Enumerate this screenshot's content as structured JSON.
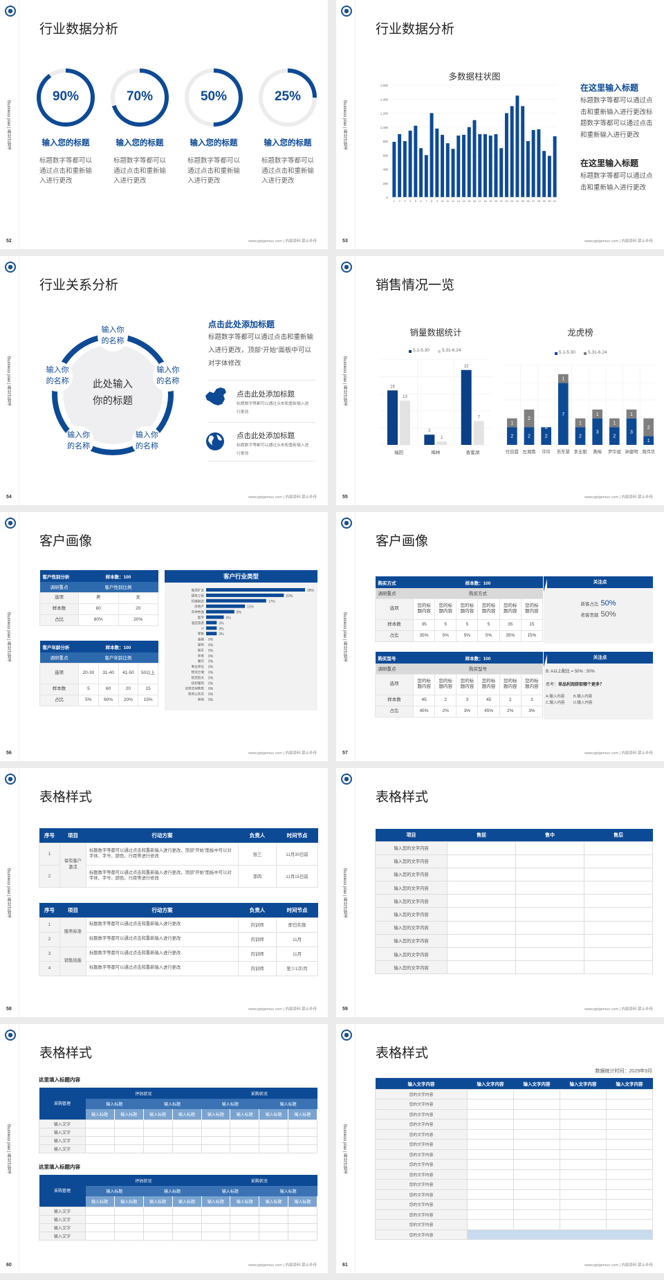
{
  "common": {
    "sidebar_text": "Business plan | 商业计划书",
    "footer": "www.pptgenius.com | 内部资料 禁止外传",
    "accent": "#0d4a96",
    "logo_icon": "school-crest-icon"
  },
  "s52": {
    "page": "52",
    "title": "行业数据分析",
    "items": [
      {
        "percent": 90,
        "label": "90%",
        "heading": "输入您的标题",
        "text": "标题数字等都可以通过点击和重新输入进行更改"
      },
      {
        "percent": 70,
        "label": "70%",
        "heading": "输入您的标题",
        "text": "标题数字等都可以通过点击和重新输入进行更改"
      },
      {
        "percent": 50,
        "label": "50%",
        "heading": "输入您的标题",
        "text": "标题数字等都可以通过点击和重新输入进行更改"
      },
      {
        "percent": 25,
        "label": "25%",
        "heading": "输入您的标题",
        "text": "标题数字等都可以通过点击和重新输入进行更改"
      }
    ]
  },
  "s53": {
    "page": "53",
    "title": "行业数据分析",
    "heading1": "在这里输入标题",
    "text1": "标题数字等都可以通过点击和重新输入进行更改标题数字等都可以通过点击和重新输入进行更改",
    "heading2": "在这里输入标题",
    "text2": "标题数字等都可以通过点击和重新输入进行更改"
  },
  "s54": {
    "page": "54",
    "title": "行业关系分析",
    "center": "此处输入你的标题",
    "nodes": [
      "输入你的名称",
      "输入你的名称",
      "输入你的名称",
      "输入你的名称",
      "输入你的名称"
    ],
    "heading": "点击此处添加标题",
    "text": "标题数字等都可以通过点击和重新输入进行更改，顶部“开始”面板中可以对字体修改",
    "list": [
      {
        "icon": "china-map-icon",
        "title": "点击此处添加标题",
        "text": "标题数字等都可以通过点击和重新输入进行更改"
      },
      {
        "icon": "globe-icon",
        "title": "点击此处添加标题",
        "text": "标题数字等都可以通过点击和重新输入进行更改"
      }
    ]
  },
  "s55": {
    "page": "55",
    "title": "销售情况一览"
  },
  "s56": {
    "page": "56",
    "title": "客户画像",
    "gender": {
      "title": "客户性别分析",
      "sample": "样本数：100",
      "focus": "调研重点",
      "focus_value": "客户性别比例",
      "rows": [
        [
          "选项",
          "男",
          "女"
        ],
        [
          "样本数",
          "80",
          "20"
        ],
        [
          "占比",
          "80%",
          "20%"
        ]
      ]
    },
    "age": {
      "title": "客户年龄分析",
      "sample": "样本数：100",
      "focus": "调研重点",
      "focus_value": "客户年龄比例",
      "rows": [
        [
          "选项",
          "20-30",
          "31-40",
          "41-50",
          "50以上"
        ],
        [
          "样本数",
          "5",
          "60",
          "20",
          "15"
        ],
        [
          "占比",
          "5%",
          "60%",
          "20%",
          "15%"
        ]
      ]
    },
    "industry_title": "客户行业类型"
  },
  "s57": {
    "page": "57",
    "title": "客户画像",
    "method": {
      "title": "购买方式",
      "sample": "样本数：100",
      "focus": "调研重点",
      "focus_value": "购买方式",
      "rows": [
        [
          "选项",
          "您的标题内容",
          "您的标题内容",
          "您的标题内容",
          "您的标题内容",
          "您的标题内容",
          "您的标题内容"
        ],
        [
          "样本数",
          "35",
          "5",
          "5",
          "5",
          "35",
          "15"
        ],
        [
          "占比",
          "35%",
          "5%",
          "5%",
          "5%",
          "35%",
          "15%"
        ]
      ]
    },
    "model": {
      "title": "购买型号",
      "sample": "样本数：100",
      "focus": "调研重点",
      "focus_value": "购买型号",
      "rows": [
        [
          "选项",
          "您的标题内容",
          "您的标题内容",
          "您的标题内容",
          "您的标题内容",
          "您的标题内容",
          "您的标题内容"
        ],
        [
          "样本数",
          "45",
          "2",
          "3",
          "45",
          "2",
          "3"
        ],
        [
          "占比",
          "45%",
          "2%",
          "3%",
          "45%",
          "2%",
          "3%"
        ]
      ]
    },
    "panel1": {
      "title": "关注点",
      "new_label": "新客占比",
      "new_value": "50%",
      "old_label": "老客贡献",
      "old_value": "50%"
    },
    "panel2": {
      "title": "关注点",
      "ratio": "B: A以上配比 = 50% : 50%",
      "think_label": "思考：",
      "think_q": "单品利润获取哪个更多？",
      "options": [
        "A.输入内容",
        "B.输入内容",
        "C.输入内容",
        "D.输入内容"
      ]
    }
  },
  "s58": {
    "page": "58",
    "title": "表格样式",
    "headers": [
      "序号",
      "项目",
      "行动方案",
      "负责人",
      "时间节点"
    ],
    "table1": {
      "groups": [
        {
          "name": "保有客户激活",
          "rows": [
            [
              "1",
              "标题数字等都可以通过点击和重新输入进行更改，顶部“开始”面板中可以对字体、字号、颜色、行距等进行修改",
              "张三",
              "11月30日前"
            ],
            [
              "2",
              "标题数字等都可以通过点击和重新输入进行更改，顶部“开始”面板中可以对字体、字号、颜色、行距等进行修改",
              "李四",
              "11月15日前"
            ]
          ]
        }
      ]
    },
    "table2": {
      "groups": [
        {
          "name": "服务标准",
          "rows": [
            [
              "1",
              "标题数字等都可以通过点击和重新输入进行更改",
              "内训师",
              "即日实施"
            ],
            [
              "2",
              "标题数字等都可以通过点击和重新输入进行更改",
              "内训师",
              "11月"
            ]
          ]
        },
        {
          "name": "销售技能",
          "rows": [
            [
              "3",
              "标题数字等都可以通过点击和重新输入进行更改",
              "内训师",
              "11月"
            ],
            [
              "4",
              "标题数字等都可以通过点击和重新输入进行更改",
              "内训师",
              "至少1次/月"
            ]
          ]
        }
      ]
    }
  },
  "s59": {
    "page": "59",
    "title": "表格样式",
    "headers": [
      "项目",
      "售前",
      "售中",
      "售后"
    ],
    "rows": [
      "输入您的文字内容",
      "输入您的文字内容",
      "输入您的文字内容",
      "输入您的文字内容",
      "输入您的文字内容",
      "输入您的文字内容",
      "输入您的文字内容",
      "输入您的文字内容",
      "输入您的文字内容",
      "输入您的文字内容"
    ]
  },
  "s60": {
    "page": "60",
    "title": "表格样式",
    "tables": [
      {
        "subtitle": "这里填入标题内容",
        "corner": "采购管理",
        "groups": [
          "评估状况",
          "采购状况"
        ],
        "subgroups": [
          "输入标题",
          "输入标题",
          "输入标题",
          "输入标题"
        ],
        "columns": [
          "输入标题",
          "输入标题",
          "输入标题",
          "输入标题",
          "输入标题",
          "输入标题",
          "输入标题",
          "输入标题"
        ],
        "rows": [
          "输入文字",
          "输入文字",
          "输入文字",
          "输入文字"
        ]
      },
      {
        "subtitle": "这里填入标题内容",
        "corner": "采购管理",
        "groups": [
          "评估状况",
          "采购状况"
        ],
        "subgroups": [
          "输入标题",
          "输入标题",
          "输入标题",
          "输入标题"
        ],
        "columns": [
          "输入标题",
          "输入标题",
          "输入标题",
          "输入标题",
          "输入标题",
          "输入标题",
          "输入标题",
          "输入标题"
        ],
        "rows": [
          "输入文字",
          "输入文字",
          "输入文字",
          "输入文字"
        ]
      }
    ]
  },
  "s61": {
    "page": "61",
    "title": "表格样式",
    "date": "数据统计时间：2029年9月",
    "headers": [
      "输入文字内容",
      "输入文字内容",
      "输入文字内容",
      "输入文字内容",
      "输入文字内容"
    ],
    "rows": [
      "您的文字内容",
      "您的文字内容",
      "您的文字内容",
      "您的文字内容",
      "您的文字内容",
      "您的文字内容",
      "您的文字内容",
      "您的文字内容",
      "您的文字内容",
      "您的文字内容",
      "您的文字内容",
      "您的文字内容",
      "您的文字内容",
      "您的文字内容",
      "您的文字内容"
    ]
  },
  "chart_data": [
    {
      "type": "bar",
      "title": "多数据柱状图",
      "categories": [
        "1",
        "2",
        "3",
        "4",
        "5",
        "6",
        "7",
        "8",
        "9",
        "10",
        "11",
        "12",
        "13",
        "14",
        "15",
        "16",
        "17",
        "18",
        "19",
        "20",
        "21",
        "22",
        "23",
        "24",
        "25",
        "26",
        "27",
        "28",
        "29",
        "30",
        "31"
      ],
      "values": [
        790,
        900,
        800,
        950,
        1020,
        700,
        600,
        1200,
        980,
        890,
        770,
        690,
        880,
        890,
        1000,
        1100,
        900,
        900,
        880,
        900,
        700,
        1200,
        1300,
        1450,
        1300,
        800,
        960,
        970,
        660,
        590,
        870
      ],
      "ylim": [
        0,
        1600
      ],
      "yticks": [
        "0",
        "200",
        "400",
        "600",
        "800",
        "1,000",
        "1,200",
        "1,400",
        "1,600"
      ],
      "grid": true,
      "color": "#0d4a96"
    },
    {
      "type": "bar",
      "title": "销量数据统计",
      "categories": [
        "福田",
        "梅林",
        "香蜜湖"
      ],
      "series": [
        {
          "name": "5.1-5.30",
          "values": [
            16,
            3,
            22
          ],
          "color": "#0b3f86"
        },
        {
          "name": "5.31-6.24",
          "values": [
            13,
            1,
            7
          ],
          "color": "#e3e3e3"
        }
      ],
      "ylim": [
        0,
        25
      ],
      "legend": "top",
      "grid": true
    },
    {
      "type": "bar",
      "stacked": true,
      "title": "龙虎榜",
      "categories": [
        "付自甜",
        "左湘南",
        "许玲",
        "苏东慧",
        "李业丽",
        "黄梅",
        "尹华斌",
        "钟建明",
        "周伟华"
      ],
      "series": [
        {
          "name": "5.1-5.30",
          "values": [
            2,
            2,
            2,
            7,
            2,
            3,
            2,
            3,
            1
          ],
          "color": "#0d4a96"
        },
        {
          "name": "5.31-6.24",
          "values": [
            1,
            2,
            0,
            1,
            1,
            1,
            1,
            1,
            2
          ],
          "color": "#7f7f7f"
        }
      ],
      "ylim": [
        0,
        9
      ],
      "legend": "top",
      "grid": true
    },
    {
      "type": "bar",
      "orientation": "horizontal",
      "title": "客户行业类型",
      "categories": [
        "能源矿业",
        "建筑工程",
        "机械制造",
        "房地产",
        "农林牧渔",
        "医学",
        "酒店旅游",
        "IT",
        "零售",
        "金融",
        "媒体",
        "娱乐",
        "体育",
        "餐饮",
        "事业单位",
        "物流仓储",
        "航空航天",
        "纺织服饰",
        "法律咨询教育",
        "政府公务员",
        "其他"
      ],
      "values": [
        28,
        22,
        17,
        11,
        8,
        5,
        3,
        3,
        3,
        0,
        0,
        0,
        0,
        0,
        0,
        0,
        0,
        0,
        0,
        0,
        0
      ],
      "labels": [
        "28%",
        "22%",
        "17%",
        "11%",
        "8%",
        "5%",
        "3%",
        "3%",
        "3%",
        "0%",
        "0%",
        "0%",
        "0%",
        "0%",
        "0%",
        "0%",
        "0%",
        "0%",
        "0%",
        "0%",
        "0%"
      ],
      "color": "#0d4a96"
    }
  ]
}
